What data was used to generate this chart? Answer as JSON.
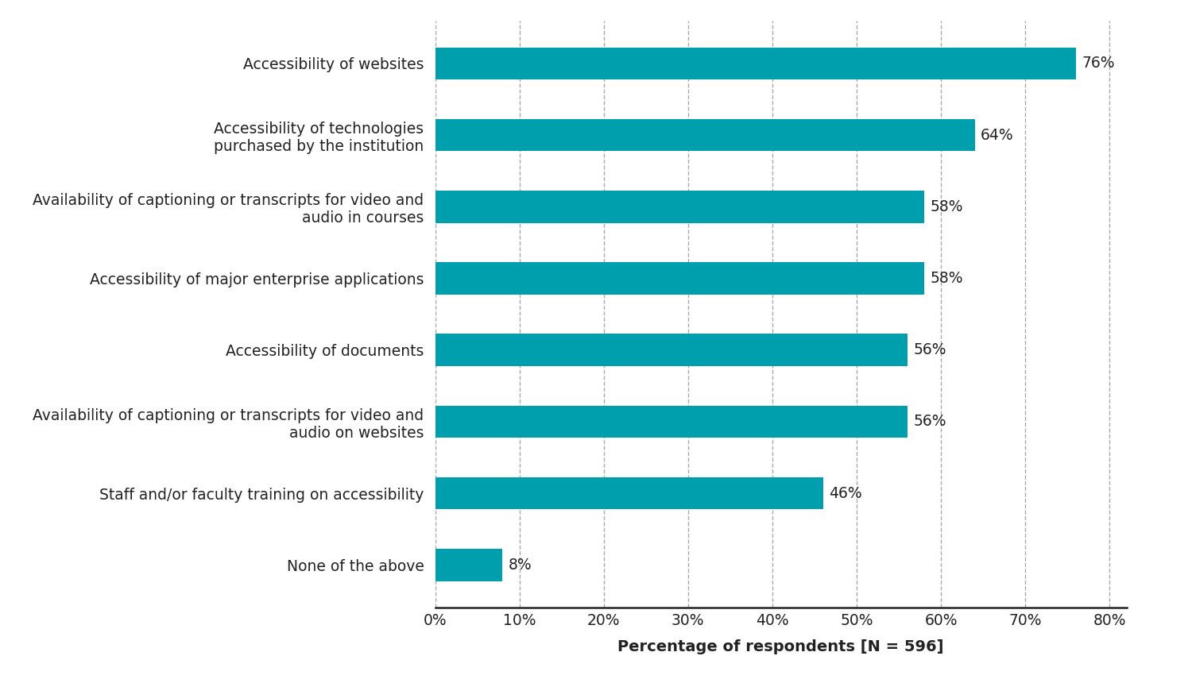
{
  "categories": [
    "None of the above",
    "Staff and/or faculty training on accessibility",
    "Availability of captioning or transcripts for video and\naudio on websites",
    "Accessibility of documents",
    "Accessibility of major enterprise applications",
    "Availability of captioning or transcripts for video and\naudio in courses",
    "Accessibility of technologies\npurchased by the institution",
    "Accessibility of websites"
  ],
  "values": [
    8,
    46,
    56,
    56,
    58,
    58,
    64,
    76
  ],
  "bar_color": "#009fad",
  "background_color": "#ffffff",
  "xlabel": "Percentage of respondents [N = 596]",
  "xlim": [
    0,
    82
  ],
  "xticks": [
    0,
    10,
    20,
    30,
    40,
    50,
    60,
    70,
    80
  ],
  "bar_height": 0.45,
  "label_fontsize": 13.5,
  "xlabel_fontsize": 14,
  "value_fontsize": 13.5,
  "grid_color": "#aaaaaa",
  "axis_color": "#222222"
}
